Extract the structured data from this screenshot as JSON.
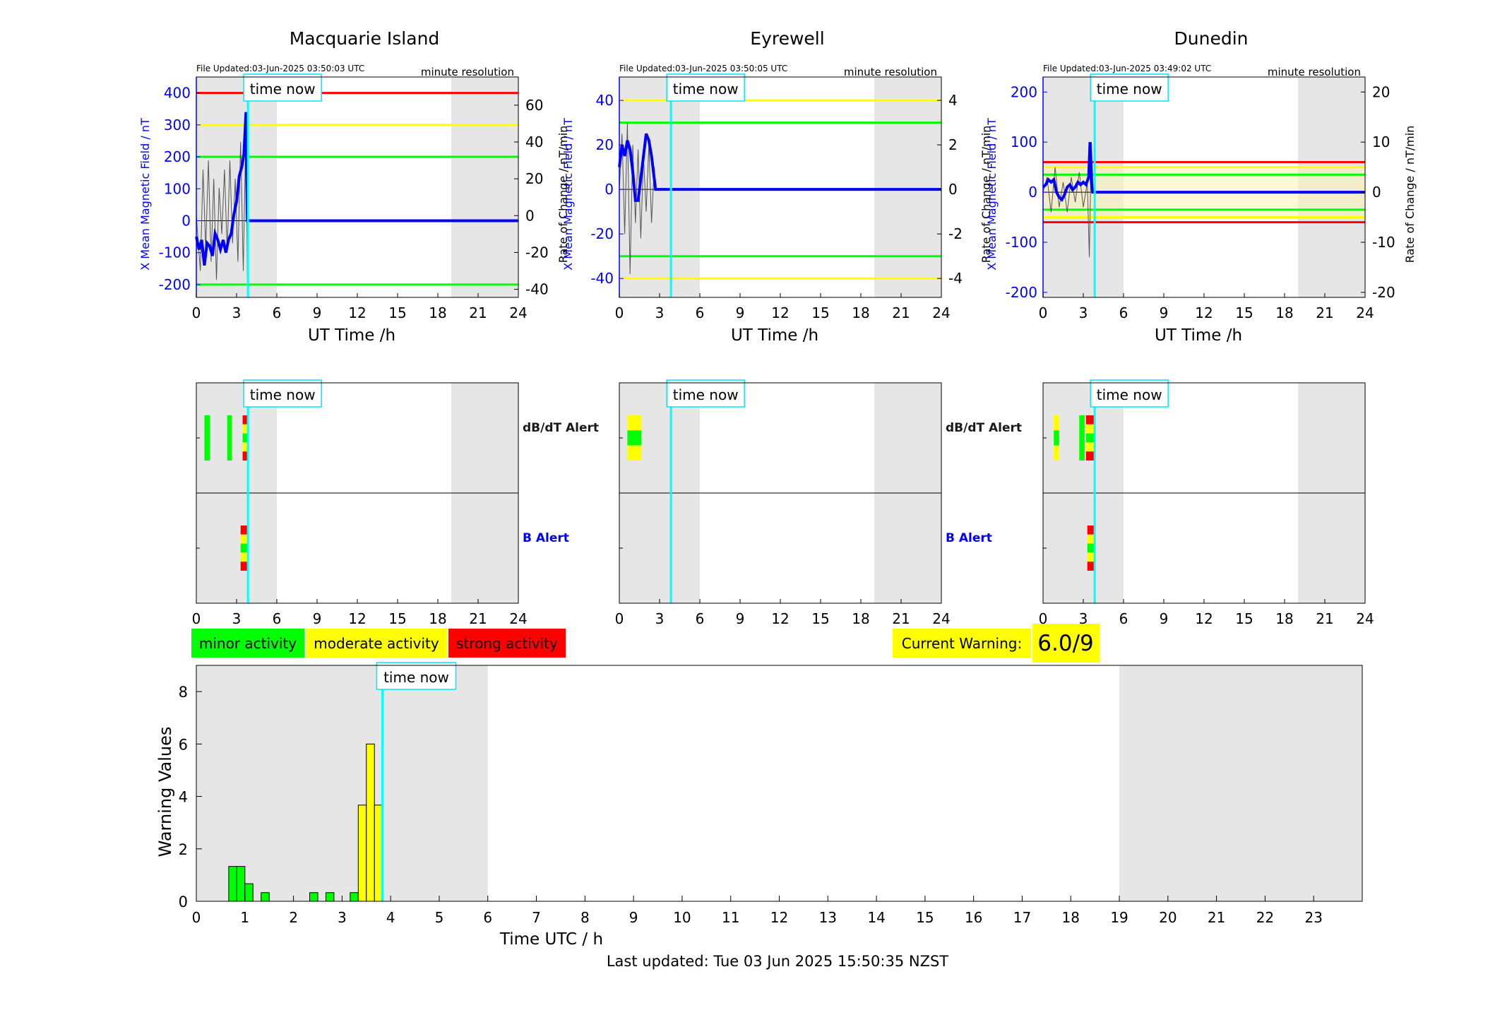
{
  "stations": [
    {
      "name": "Macquarie Island",
      "file_updated": "File Updated:03-Jun-2025 03:50:03 UTC",
      "resolution": "minute resolution",
      "ylabel_left": "X Mean Magnetic Field / nT",
      "ylabel_right": "Rate of Change / nT/min",
      "left_ticks": [
        -200,
        -100,
        0,
        100,
        200,
        300,
        400
      ],
      "right_ticks": [
        -40,
        -20,
        0,
        20,
        40,
        60
      ],
      "left_range": [
        -240,
        450
      ],
      "right_range": [
        -44.4,
        75.3
      ],
      "thresholds": [
        {
          "value": 400,
          "color": "#ff0000"
        },
        {
          "value": 300,
          "color": "#ffff00"
        },
        {
          "value": 200,
          "color": "#00ff00"
        },
        {
          "value": -200,
          "color": "#00ff00"
        }
      ],
      "band": null,
      "dbdt_alerts": [
        {
          "start": 0.6,
          "end": 1.0,
          "levels": [
            "green"
          ]
        },
        {
          "start": 2.3,
          "end": 2.65,
          "levels": [
            "green"
          ]
        },
        {
          "start": 3.45,
          "end": 3.85,
          "levels": [
            "red",
            "yellow",
            "green",
            "yellow",
            "red"
          ]
        }
      ],
      "b_alerts": [
        {
          "start": 3.3,
          "end": 3.85,
          "levels": [
            "red",
            "yellow",
            "green",
            "yellow",
            "red"
          ]
        }
      ],
      "field_curve": [
        [
          0,
          -50
        ],
        [
          0.2,
          -90
        ],
        [
          0.4,
          -60
        ],
        [
          0.6,
          -140
        ],
        [
          0.8,
          -70
        ],
        [
          1.0,
          -80
        ],
        [
          1.2,
          -110
        ],
        [
          1.4,
          -40
        ],
        [
          1.6,
          -60
        ],
        [
          1.8,
          -90
        ],
        [
          2.0,
          -60
        ],
        [
          2.2,
          -100
        ],
        [
          2.4,
          -60
        ],
        [
          2.6,
          -40
        ],
        [
          2.8,
          20
        ],
        [
          3.0,
          60
        ],
        [
          3.2,
          140
        ],
        [
          3.4,
          170
        ],
        [
          3.55,
          210
        ],
        [
          3.7,
          340
        ],
        [
          3.8,
          0
        ],
        [
          24,
          0
        ]
      ],
      "rate_curve": [
        [
          0,
          0
        ],
        [
          0.3,
          -30
        ],
        [
          0.5,
          25
        ],
        [
          0.7,
          -18
        ],
        [
          0.9,
          30
        ],
        [
          1.1,
          -25
        ],
        [
          1.3,
          20
        ],
        [
          1.5,
          -35
        ],
        [
          1.7,
          15
        ],
        [
          1.9,
          -10
        ],
        [
          2.1,
          25
        ],
        [
          2.3,
          -20
        ],
        [
          2.5,
          30
        ],
        [
          2.7,
          -15
        ],
        [
          2.9,
          20
        ],
        [
          3.1,
          -25
        ],
        [
          3.3,
          40
        ],
        [
          3.5,
          -30
        ],
        [
          3.7,
          50
        ],
        [
          3.8,
          -35
        ],
        [
          3.85,
          0
        ]
      ]
    },
    {
      "name": "Eyrewell",
      "file_updated": "File Updated:03-Jun-2025 03:50:05 UTC",
      "resolution": "minute resolution",
      "ylabel_left": "X Mean Magnetic Field / nT",
      "ylabel_right": "Rate of Change / nT/min",
      "left_ticks": [
        -40,
        -20,
        0,
        20,
        40
      ],
      "right_ticks": [
        -4,
        -2,
        0,
        2,
        4
      ],
      "left_range": [
        -48.5,
        50.5
      ],
      "right_range": [
        -4.85,
        5.05
      ],
      "thresholds": [
        {
          "value": 40,
          "color": "#ffff00"
        },
        {
          "value": 30,
          "color": "#00ff00"
        },
        {
          "value": -30,
          "color": "#00ff00"
        },
        {
          "value": -40,
          "color": "#ffff00"
        }
      ],
      "band": null,
      "dbdt_alerts": [
        {
          "start": 0.6,
          "end": 1.65,
          "levels": [
            "yellow",
            "green",
            "yellow"
          ]
        }
      ],
      "b_alerts": [],
      "field_curve": [
        [
          0,
          10
        ],
        [
          0.2,
          20
        ],
        [
          0.4,
          15
        ],
        [
          0.6,
          22
        ],
        [
          0.8,
          18
        ],
        [
          1.0,
          8
        ],
        [
          1.2,
          -5
        ],
        [
          1.4,
          -5
        ],
        [
          1.6,
          5
        ],
        [
          1.8,
          15
        ],
        [
          2.0,
          25
        ],
        [
          2.2,
          22
        ],
        [
          2.4,
          15
        ],
        [
          2.6,
          5
        ],
        [
          2.7,
          0
        ],
        [
          24,
          0
        ]
      ],
      "rate_curve": [
        [
          0,
          0
        ],
        [
          0.2,
          2.5
        ],
        [
          0.4,
          -2
        ],
        [
          0.6,
          3
        ],
        [
          0.8,
          -3.8
        ],
        [
          1.0,
          2
        ],
        [
          1.2,
          -1.5
        ],
        [
          1.4,
          1.8
        ],
        [
          1.6,
          -2.2
        ],
        [
          1.8,
          1.5
        ],
        [
          2.0,
          -1
        ],
        [
          2.2,
          2
        ],
        [
          2.4,
          -1.5
        ],
        [
          2.6,
          1
        ],
        [
          2.7,
          0
        ]
      ]
    },
    {
      "name": "Dunedin",
      "file_updated": "File Updated:03-Jun-2025 03:49:02 UTC",
      "resolution": "minute resolution",
      "ylabel_left": "X Mean Magnetic Field / nT",
      "ylabel_right": "Rate of Change / nT/min",
      "left_ticks": [
        -200,
        -100,
        0,
        100,
        200
      ],
      "right_ticks": [
        -20,
        -10,
        0,
        10,
        20
      ],
      "left_range": [
        -210,
        230
      ],
      "right_range": [
        -21,
        23
      ],
      "thresholds": [
        {
          "value": 60,
          "color": "#ff0000"
        },
        {
          "value": 50,
          "color": "#ffff00"
        },
        {
          "value": 35,
          "color": "#00ff00"
        },
        {
          "value": -35,
          "color": "#00ff00"
        },
        {
          "value": -50,
          "color": "#ffff00"
        },
        {
          "value": -60,
          "color": "#ff0000"
        }
      ],
      "band": [
        -50,
        50
      ],
      "dbdt_alerts": [
        {
          "start": 0.8,
          "end": 1.2,
          "levels": [
            "yellow",
            "green",
            "yellow"
          ]
        },
        {
          "start": 2.7,
          "end": 3.1,
          "levels": [
            "green"
          ]
        },
        {
          "start": 3.2,
          "end": 3.9,
          "levels": [
            "red",
            "yellow",
            "green",
            "yellow",
            "red"
          ]
        }
      ],
      "b_alerts": [
        {
          "start": 3.3,
          "end": 3.9,
          "levels": [
            "red",
            "yellow",
            "green",
            "yellow",
            "red"
          ]
        }
      ],
      "field_curve": [
        [
          0,
          10
        ],
        [
          0.2,
          15
        ],
        [
          0.4,
          25
        ],
        [
          0.6,
          20
        ],
        [
          0.8,
          25
        ],
        [
          1.0,
          0
        ],
        [
          1.2,
          -10
        ],
        [
          1.4,
          -15
        ],
        [
          1.6,
          -5
        ],
        [
          1.8,
          10
        ],
        [
          2.0,
          15
        ],
        [
          2.2,
          5
        ],
        [
          2.4,
          10
        ],
        [
          2.6,
          20
        ],
        [
          2.8,
          15
        ],
        [
          3.0,
          20
        ],
        [
          3.2,
          15
        ],
        [
          3.4,
          30
        ],
        [
          3.5,
          100
        ],
        [
          3.6,
          20
        ],
        [
          3.7,
          0
        ],
        [
          24,
          0
        ]
      ],
      "rate_curve": [
        [
          0,
          0
        ],
        [
          0.3,
          3
        ],
        [
          0.6,
          -4
        ],
        [
          0.9,
          5
        ],
        [
          1.2,
          -3
        ],
        [
          1.5,
          2
        ],
        [
          1.8,
          -4
        ],
        [
          2.1,
          3
        ],
        [
          2.4,
          -2
        ],
        [
          2.7,
          4
        ],
        [
          3.0,
          -3
        ],
        [
          3.3,
          2
        ],
        [
          3.45,
          -13
        ],
        [
          3.6,
          10
        ],
        [
          3.75,
          0
        ]
      ]
    }
  ],
  "axes_shared": {
    "xlabel": "UT Time /h",
    "x_ticks": [
      0,
      3,
      6,
      9,
      12,
      15,
      18,
      21,
      24
    ],
    "shade": [
      [
        0,
        6
      ],
      [
        19,
        24
      ]
    ],
    "time_now_label": "time now",
    "time_now_hour": 3.85
  },
  "alert_labels": {
    "dbdt": "dB/dT Alert",
    "b": "B Alert"
  },
  "legend": {
    "minor": {
      "label": "minor activity",
      "color": "#00ff00"
    },
    "moderate": {
      "label": "moderate activity",
      "color": "#ffff00"
    },
    "strong": {
      "label": "strong activity",
      "color": "#ff0000"
    }
  },
  "current_warning": {
    "label": "Current Warning:",
    "value": "6.0/9"
  },
  "chart_data": {
    "type": "bar",
    "ylabel": "Warning Values",
    "xlabel": "Time UTC / h",
    "xlim": [
      0,
      24
    ],
    "ylim": [
      0,
      9
    ],
    "y_ticks": [
      0,
      2,
      4,
      6,
      8
    ],
    "x_ticks": [
      0,
      1,
      2,
      3,
      4,
      5,
      6,
      7,
      8,
      9,
      10,
      11,
      12,
      13,
      14,
      15,
      16,
      17,
      18,
      19,
      20,
      21,
      22,
      23
    ],
    "bars": [
      {
        "x": 0.75,
        "value": 1.33,
        "color": "#00ff00"
      },
      {
        "x": 0.917,
        "value": 1.33,
        "color": "#00ff00"
      },
      {
        "x": 1.083,
        "value": 0.67,
        "color": "#00ff00"
      },
      {
        "x": 1.417,
        "value": 0.33,
        "color": "#00ff00"
      },
      {
        "x": 2.417,
        "value": 0.33,
        "color": "#00ff00"
      },
      {
        "x": 2.75,
        "value": 0.33,
        "color": "#00ff00"
      },
      {
        "x": 3.25,
        "value": 0.33,
        "color": "#00ff00"
      },
      {
        "x": 3.417,
        "value": 3.67,
        "color": "#ffff00"
      },
      {
        "x": 3.583,
        "value": 6.0,
        "color": "#ffff00"
      },
      {
        "x": 3.75,
        "value": 3.67,
        "color": "#ffff00"
      }
    ],
    "time_now_label": "time now",
    "time_now_hour": 3.83
  },
  "footer": {
    "last_updated": "Last updated: Tue 03 Jun 2025 15:50:35 NZST"
  }
}
